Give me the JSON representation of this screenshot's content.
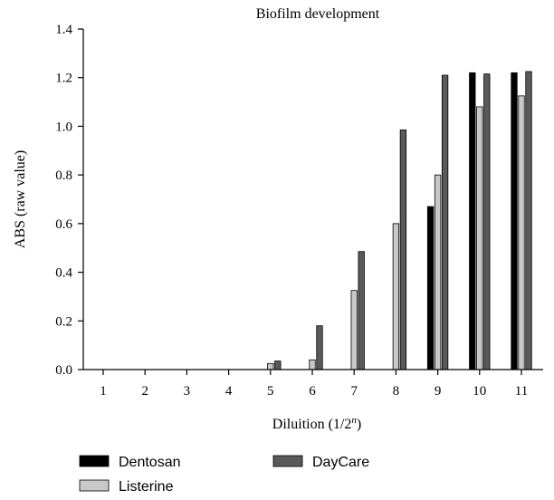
{
  "chart_data": {
    "type": "bar",
    "title": "Biofilm development",
    "xlabel": {
      "prefix": "Diluition (1/2",
      "sup": "n",
      "suffix": ")"
    },
    "ylabel": "ABS (raw value)",
    "ylim": [
      0,
      1.4
    ],
    "yticks": [
      "0.0",
      "0.2",
      "0.4",
      "0.6",
      "0.8",
      "1.0",
      "1.2",
      "1.4"
    ],
    "categories": [
      "1",
      "2",
      "3",
      "4",
      "5",
      "6",
      "7",
      "8",
      "9",
      "10",
      "11"
    ],
    "series": [
      {
        "name": "Dentosan",
        "color": "#000000",
        "values": [
          0,
          0,
          0,
          0,
          0,
          0,
          0,
          0,
          0.67,
          1.22,
          1.22
        ]
      },
      {
        "name": "Listerine",
        "color": "#c8c8c8",
        "values": [
          0,
          0,
          0,
          0,
          0.025,
          0.04,
          0.325,
          0.6,
          0.8,
          1.08,
          1.125
        ]
      },
      {
        "name": "DayCare",
        "color": "#5a5a5a",
        "values": [
          0,
          0,
          0,
          0,
          0.035,
          0.18,
          0.485,
          0.985,
          1.21,
          1.215,
          1.225
        ]
      }
    ],
    "legend": "bottom",
    "grid": false
  }
}
